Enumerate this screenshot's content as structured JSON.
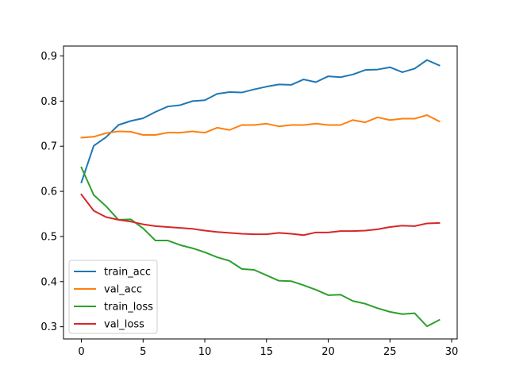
{
  "chart_data": {
    "type": "line",
    "x": [
      0,
      1,
      2,
      3,
      4,
      5,
      6,
      7,
      8,
      9,
      10,
      11,
      12,
      13,
      14,
      15,
      16,
      17,
      18,
      19,
      20,
      21,
      22,
      23,
      24,
      25,
      26,
      27,
      28,
      29
    ],
    "xlim": [
      -1.45,
      30.45
    ],
    "ylim": [
      0.273,
      0.922
    ],
    "xticks": [
      0,
      5,
      10,
      15,
      20,
      25,
      30
    ],
    "yticks": [
      0.3,
      0.4,
      0.5,
      0.6,
      0.7,
      0.8,
      0.9
    ],
    "grid": false,
    "legend_position": "lower-left",
    "series": [
      {
        "name": "train_acc",
        "color": "#1f77b4",
        "values": [
          0.62,
          0.701,
          0.72,
          0.747,
          0.756,
          0.762,
          0.776,
          0.788,
          0.791,
          0.8,
          0.802,
          0.816,
          0.82,
          0.819,
          0.826,
          0.832,
          0.837,
          0.836,
          0.848,
          0.842,
          0.855,
          0.853,
          0.859,
          0.869,
          0.87,
          0.875,
          0.864,
          0.872,
          0.891,
          0.879
        ]
      },
      {
        "name": "val_acc",
        "color": "#ff7f0e",
        "values": [
          0.719,
          0.721,
          0.729,
          0.733,
          0.732,
          0.725,
          0.725,
          0.73,
          0.73,
          0.733,
          0.73,
          0.741,
          0.736,
          0.747,
          0.747,
          0.75,
          0.744,
          0.747,
          0.747,
          0.75,
          0.747,
          0.747,
          0.758,
          0.753,
          0.764,
          0.758,
          0.761,
          0.761,
          0.769,
          0.755
        ]
      },
      {
        "name": "train_loss",
        "color": "#2ca02c",
        "values": [
          0.653,
          0.592,
          0.567,
          0.537,
          0.538,
          0.518,
          0.491,
          0.491,
          0.481,
          0.474,
          0.465,
          0.454,
          0.446,
          0.428,
          0.426,
          0.414,
          0.402,
          0.401,
          0.392,
          0.382,
          0.37,
          0.371,
          0.357,
          0.351,
          0.341,
          0.333,
          0.328,
          0.33,
          0.301,
          0.315
        ]
      },
      {
        "name": "val_loss",
        "color": "#d62728",
        "values": [
          0.593,
          0.557,
          0.543,
          0.537,
          0.533,
          0.527,
          0.523,
          0.521,
          0.519,
          0.517,
          0.513,
          0.51,
          0.508,
          0.506,
          0.505,
          0.505,
          0.508,
          0.506,
          0.503,
          0.509,
          0.509,
          0.512,
          0.512,
          0.513,
          0.516,
          0.521,
          0.524,
          0.523,
          0.529,
          0.53
        ]
      }
    ]
  }
}
